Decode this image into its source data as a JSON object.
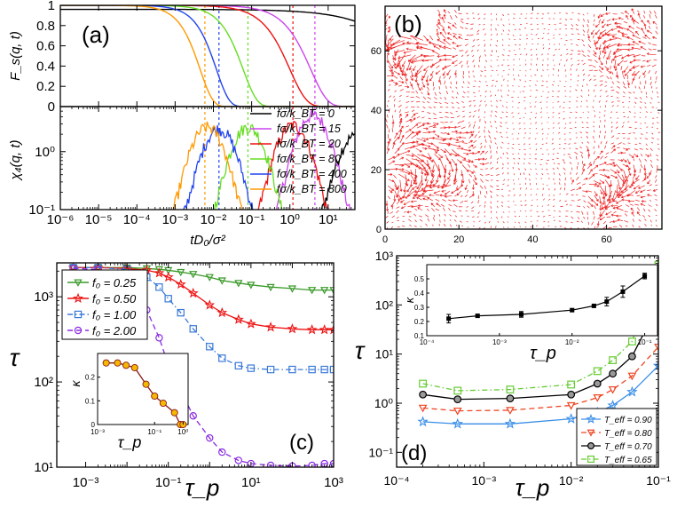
{
  "chart_data": [
    {
      "id": "a",
      "panel_label": "(a)",
      "type": "line",
      "xlabel": "tD₀/σ²",
      "xscale": "log",
      "xlim": [
        1e-06,
        50
      ],
      "x_ticks": [
        "10⁻⁶",
        "10⁻⁵",
        "10⁻⁴",
        "10⁻³",
        "10⁻²",
        "10⁻¹",
        "10⁰",
        "10¹"
      ],
      "top": {
        "ylabel": "F_s(q, t)",
        "ylim": [
          0,
          1
        ],
        "y_ticks": [
          "0",
          "0.2",
          "0.4",
          "0.6",
          "0.8",
          "1"
        ],
        "series": [
          {
            "name": "fσ/k_BT = 0",
            "color": "#000000",
            "tau": 300,
            "beta": 0.6
          },
          {
            "name": "fσ/k_BT = 15",
            "color": "#cc44ee",
            "tau": 3.5,
            "beta": 1.0
          },
          {
            "name": "fσ/k_BT = 20",
            "color": "#ee1111",
            "tau": 1.0,
            "beta": 1.0
          },
          {
            "name": "fσ/k_BT = 80",
            "color": "#66dd22",
            "tau": 0.06,
            "beta": 1.2
          },
          {
            "name": "fσ/k_BT = 400",
            "color": "#2244ee",
            "tau": 0.012,
            "beta": 1.3
          },
          {
            "name": "fσ/k_BT = 800",
            "color": "#ff9900",
            "tau": 0.0045,
            "beta": 1.3
          }
        ]
      },
      "bottom": {
        "ylabel": "χ₄(q, t)",
        "yscale": "log",
        "ylim": [
          0.1,
          6
        ],
        "y_ticks": [
          "10⁻¹",
          "10⁰"
        ],
        "series": [
          {
            "name": "fσ/k_BT = 0",
            "color": "#000000",
            "peak_t": 50,
            "peak": 1.8
          },
          {
            "name": "fσ/k_BT = 15",
            "color": "#cc44ee",
            "peak_t": 4,
            "peak": 4.2
          },
          {
            "name": "fσ/k_BT = 20",
            "color": "#ee1111",
            "peak_t": 1.2,
            "peak": 2.8
          },
          {
            "name": "fσ/k_BT = 80",
            "color": "#66dd22",
            "peak_t": 0.08,
            "peak": 2.6
          },
          {
            "name": "fσ/k_BT = 400",
            "color": "#2244ee",
            "peak_t": 0.014,
            "peak": 2.4
          },
          {
            "name": "fσ/k_BT = 800",
            "color": "#ff9900",
            "peak_t": 0.007,
            "peak": 2.6
          }
        ],
        "vlines": [
          {
            "x": 0.006,
            "color": "#ff9900"
          },
          {
            "x": 0.014,
            "color": "#2244ee"
          },
          {
            "x": 0.08,
            "color": "#66dd22"
          },
          {
            "x": 1.2,
            "color": "#ee1111"
          },
          {
            "x": 4.5,
            "color": "#cc44ee"
          }
        ]
      },
      "legend": [
        "fσ/k_BT = 0",
        "fσ/k_BT = 15",
        "fσ/k_BT = 20",
        "fσ/k_BT = 80",
        "fσ/k_BT = 400",
        "fσ/k_BT = 800"
      ],
      "legend_placement": "right, lower subpanel"
    },
    {
      "id": "b",
      "panel_label": "(b)",
      "type": "quiver",
      "xlim": [
        0,
        75
      ],
      "ylim": [
        0,
        75
      ],
      "x_ticks": [
        "0",
        "20",
        "40",
        "60"
      ],
      "y_ticks": [
        "0",
        "20",
        "40",
        "60"
      ],
      "arrow_color": "#ee2222"
    },
    {
      "id": "c",
      "panel_label": "(c)",
      "type": "line",
      "xlabel": "τ_p",
      "ylabel": "τ",
      "xscale": "log",
      "yscale": "log",
      "xlim": [
        0.0002,
        1000
      ],
      "ylim": [
        10,
        2500
      ],
      "x_ticks": [
        "10⁻³",
        "10⁻¹",
        "10¹",
        "10³"
      ],
      "y_ticks": [
        "10¹",
        "10²",
        "10³"
      ],
      "series": [
        {
          "name": "f₀ = 0.25",
          "color": "#3a9a2a",
          "marker": "tri-down",
          "dash": "solid",
          "x": [
            0.0005,
            0.002,
            0.01,
            0.03,
            0.06,
            0.1,
            0.2,
            0.4,
            1,
            2,
            5,
            10,
            30,
            100,
            300,
            600,
            1000
          ],
          "y": [
            2200,
            2200,
            2200,
            2150,
            2100,
            2050,
            1950,
            1850,
            1700,
            1550,
            1450,
            1380,
            1300,
            1250,
            1200,
            1200,
            1200
          ]
        },
        {
          "name": "f₀ = 0.50",
          "color": "#ee1111",
          "marker": "star",
          "dash": "solid",
          "x": [
            0.0005,
            0.002,
            0.01,
            0.03,
            0.06,
            0.1,
            0.2,
            0.4,
            1,
            2,
            5,
            10,
            30,
            100,
            300,
            600,
            1000
          ],
          "y": [
            2200,
            2200,
            2150,
            2050,
            1900,
            1700,
            1400,
            1100,
            800,
            650,
            540,
            480,
            440,
            420,
            410,
            410,
            410
          ]
        },
        {
          "name": "f₀ = 1.00",
          "color": "#3a7ad8",
          "marker": "square",
          "dash": "dashdot",
          "x": [
            0.0005,
            0.002,
            0.01,
            0.03,
            0.06,
            0.1,
            0.2,
            0.4,
            1,
            2,
            5,
            10,
            30,
            100,
            300,
            600,
            1000
          ],
          "y": [
            2200,
            2200,
            2100,
            1700,
            1300,
            950,
            650,
            420,
            260,
            190,
            155,
            145,
            140,
            140,
            140,
            140,
            140
          ]
        },
        {
          "name": "f₀ = 2.00",
          "color": "#8a2be2",
          "marker": "circle",
          "dash": "dashed",
          "x": [
            0.0005,
            0.002,
            0.01,
            0.03,
            0.06,
            0.1,
            0.2,
            0.4,
            1,
            2,
            5,
            10,
            30,
            100,
            300,
            600,
            1000
          ],
          "y": [
            2150,
            2100,
            1500,
            700,
            330,
            160,
            80,
            40,
            22,
            15,
            12,
            11,
            10.5,
            10.3,
            10.5,
            11,
            11
          ]
        }
      ],
      "legend_placement": "top-left",
      "inset": {
        "type": "line",
        "xlabel": "τ_p",
        "ylabel": "κ",
        "xscale": "log",
        "xlim": [
          0.001,
          1.5
        ],
        "ylim": [
          0,
          0.3
        ],
        "x_ticks": [
          "10⁻³",
          "10⁻¹",
          "10⁰"
        ],
        "y_ticks": [
          "0",
          "0.1",
          "0.2"
        ],
        "color": "#8b1a1a",
        "marker_color": "#f5b800",
        "x": [
          0.002,
          0.005,
          0.01,
          0.02,
          0.05,
          0.1,
          0.2,
          0.5,
          0.8,
          1.0
        ],
        "y": [
          0.26,
          0.26,
          0.25,
          0.24,
          0.17,
          0.12,
          0.09,
          0.05,
          0,
          0
        ]
      }
    },
    {
      "id": "d",
      "panel_label": "(d)",
      "type": "line",
      "xlabel": "τ_p",
      "ylabel": "τ",
      "xscale": "log",
      "yscale": "log",
      "xlim": [
        0.0001,
        0.1
      ],
      "ylim": [
        0.05,
        1000
      ],
      "x_ticks": [
        "10⁻⁴",
        "10⁻³",
        "10⁻²",
        "10⁻¹"
      ],
      "y_ticks": [
        "10⁻¹",
        "10⁰",
        "10¹",
        "10²",
        "10³"
      ],
      "series": [
        {
          "name": "T_eff = 0.90",
          "color": "#3a8ee8",
          "marker": "star",
          "dash": "solid",
          "x": [
            0.0002,
            0.0005,
            0.002,
            0.01,
            0.02,
            0.03,
            0.05,
            0.1
          ],
          "y": [
            0.42,
            0.38,
            0.38,
            0.48,
            0.65,
            0.9,
            1.7,
            5.8
          ]
        },
        {
          "name": "T_eff = 0.80",
          "color": "#ee4422",
          "marker": "tri-down",
          "dash": "dashed",
          "x": [
            0.0002,
            0.0005,
            0.002,
            0.01,
            0.02,
            0.03,
            0.05,
            0.1
          ],
          "y": [
            0.8,
            0.7,
            0.72,
            0.9,
            1.3,
            1.9,
            3.6,
            14
          ]
        },
        {
          "name": "T_eff = 0.70",
          "color": "#000000",
          "marker": "circle",
          "dash": "solid",
          "x": [
            0.0002,
            0.0005,
            0.002,
            0.01,
            0.02,
            0.03,
            0.05,
            0.1
          ],
          "y": [
            1.5,
            1.2,
            1.25,
            1.5,
            2.5,
            4.0,
            9,
            100
          ]
        },
        {
          "name": "T_eff = 0.65",
          "color": "#66cc33",
          "marker": "square",
          "dash": "dashdot",
          "x": [
            0.0002,
            0.0005,
            0.002,
            0.01,
            0.02,
            0.03,
            0.05,
            0.1
          ],
          "y": [
            2.5,
            1.8,
            1.9,
            2.4,
            4.5,
            7.5,
            18,
            650
          ]
        }
      ],
      "legend_placement": "bottom-right",
      "inset": {
        "type": "line",
        "xlabel": "τ_p",
        "ylabel": "κ",
        "xscale": "log",
        "xlim": [
          0.0001,
          0.15
        ],
        "ylim": [
          0.1,
          0.6
        ],
        "x_ticks": [
          "10⁻⁴",
          "10⁻³",
          "10⁻²",
          "10⁻¹"
        ],
        "y_ticks": [
          "0.1",
          "0.2",
          "0.3",
          "0.4",
          "0.5"
        ],
        "color": "#000000",
        "x": [
          0.0002,
          0.0005,
          0.002,
          0.01,
          0.02,
          0.03,
          0.05,
          0.1
        ],
        "y": [
          0.22,
          0.24,
          0.25,
          0.28,
          0.31,
          0.34,
          0.41,
          0.52
        ],
        "err": [
          0.03,
          0.01,
          0.02,
          0.01,
          0.01,
          0.03,
          0.04,
          0.02
        ]
      }
    }
  ]
}
